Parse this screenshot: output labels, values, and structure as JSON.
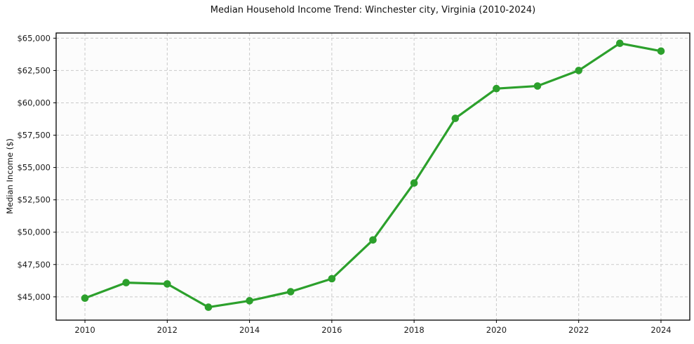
{
  "chart_data": {
    "type": "line",
    "title": "Median Household Income Trend: Winchester city, Virginia (2010-2024)",
    "xlabel": "",
    "ylabel": "Median Income ($)",
    "x": [
      2010,
      2011,
      2012,
      2013,
      2014,
      2015,
      2016,
      2017,
      2018,
      2019,
      2020,
      2021,
      2022,
      2023,
      2024
    ],
    "series": [
      {
        "name": "Median Household Income",
        "values": [
          44900,
          46100,
          46000,
          44200,
          44700,
          45400,
          46400,
          49400,
          53800,
          58800,
          61100,
          61300,
          62500,
          64600,
          64000
        ],
        "color": "#2ca02c",
        "marker": "circle"
      }
    ],
    "xlim": [
      2009.3,
      2024.7
    ],
    "ylim": [
      43200,
      65400
    ],
    "x_ticks": [
      2010,
      2012,
      2014,
      2016,
      2018,
      2020,
      2022,
      2024
    ],
    "x_tick_labels": [
      "2010",
      "2012",
      "2014",
      "2016",
      "2018",
      "2020",
      "2022",
      "2024"
    ],
    "y_ticks": [
      45000,
      47500,
      50000,
      52500,
      55000,
      57500,
      60000,
      62500,
      65000
    ],
    "y_tick_labels": [
      "$45,000",
      "$47,500",
      "$50,000",
      "$52,500",
      "$55,000",
      "$57,500",
      "$60,000",
      "$62,500",
      "$65,000"
    ],
    "grid": true,
    "grid_color": "#c9c9c9",
    "grid_dash": "4 3",
    "axis_color": "#000000",
    "plot_bg": "#fcfcfc",
    "text_color": "#1a1a1a",
    "legend": false,
    "legend_position": "none"
  }
}
